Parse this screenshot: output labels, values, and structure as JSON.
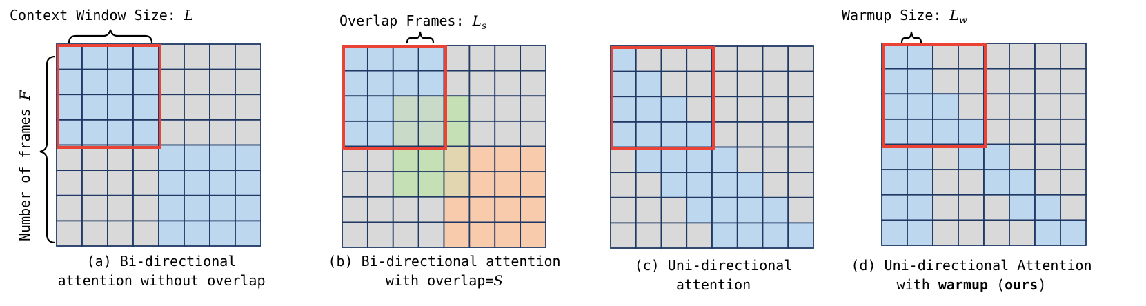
{
  "colors": {
    "gray": "#d9d9d9",
    "blue": "#bdd7ee",
    "green": "#c5e0b4",
    "orange": "#f8cbad",
    "mixed": "#c9dac8",
    "mixed_go": "#e2d6b0",
    "grid_line": "#1f3864",
    "window": "#ea4335",
    "text": "#000000"
  },
  "panels": [
    {
      "id": "a",
      "caption_line1": "(a) Bi-directional",
      "caption_line2": "attention without overlap",
      "top_label_text": "Context Window Size: ",
      "top_label_var": "L",
      "top_label_sub": "",
      "side_label_text": "Number of frames ",
      "side_label_var": "F",
      "grid": [
        "BBBBGGGG",
        "BBBBGGGG",
        "BBBBGGGG",
        "BBBBGGGG",
        "GGGGBBBB",
        "GGGGBBBB",
        "GGGGBBBB",
        "GGGGBBBB"
      ]
    },
    {
      "id": "b",
      "caption_line1": "(b) Bi-directional attention",
      "caption_line2_text": "with overlap=",
      "caption_line2_var": "S",
      "top_label_text": "Overlap Frames: ",
      "top_label_var": "L",
      "top_label_sub": "s",
      "grid": [
        "BBBBGGGG",
        "BBBBGGGG",
        "BBMMNGGG",
        "BBMMNGGG",
        "GGNNPOOO",
        "GGNNPOOO",
        "GGGGOOOO",
        "GGGGOOOO"
      ]
    },
    {
      "id": "c",
      "caption_line1": "(c) Uni-directional",
      "caption_line2": "attention",
      "grid": [
        "BGGGGGGG",
        "BBGGGGGG",
        "BBBGGGGG",
        "BBBBGGGG",
        "GBBBBGGG",
        "GGBBBBGG",
        "GGGBBBBG",
        "GGGGBBBB"
      ]
    },
    {
      "id": "d",
      "caption_line1": "(d) Uni-directional Attention",
      "caption_line2_pre": "with ",
      "caption_line2_bold1": "warmup",
      "caption_line2_mid": " (",
      "caption_line2_bold2": "ours",
      "caption_line2_post": ")",
      "top_label_text": "Warmup Size: ",
      "top_label_var": "L",
      "top_label_sub": "w",
      "grid": [
        "BBGGGGGG",
        "BBGGGGGG",
        "BBBGGGGG",
        "BBBBGGGG",
        "BBGBBGGG",
        "BBGGBBGG",
        "BBGGGBBG",
        "BBGGGGBB"
      ]
    }
  ]
}
